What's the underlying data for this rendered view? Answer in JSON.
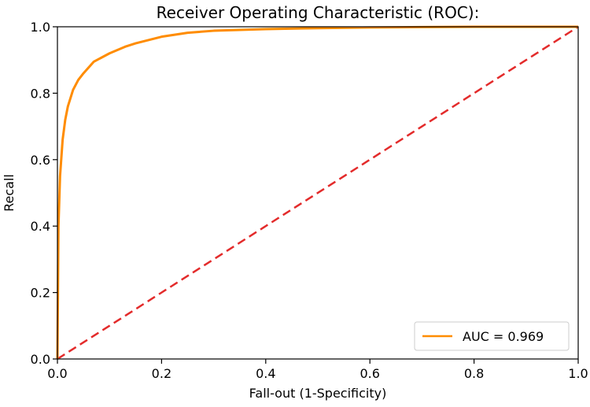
{
  "chart_data": {
    "type": "line",
    "title": "Receiver Operating Characteristic (ROC):",
    "xlabel": "Fall-out (1-Specificity)",
    "ylabel": "Recall",
    "xlim": [
      0,
      1
    ],
    "ylim": [
      0,
      1
    ],
    "xticks": [
      "0.0",
      "0.2",
      "0.4",
      "0.6",
      "0.8",
      "1.0"
    ],
    "yticks": [
      "0.0",
      "0.2",
      "0.4",
      "0.6",
      "0.8",
      "1.0"
    ],
    "grid": false,
    "legend_position": "lower-right",
    "series": [
      {
        "name": "AUC = 0.969",
        "color": "#ff8c00",
        "style": "solid",
        "x": [
          0,
          0.002,
          0.005,
          0.01,
          0.015,
          0.02,
          0.03,
          0.04,
          0.05,
          0.07,
          0.1,
          0.13,
          0.15,
          0.2,
          0.25,
          0.3,
          0.4,
          0.5,
          0.6,
          0.7,
          0.8,
          0.9,
          1.0
        ],
        "y": [
          0,
          0.4,
          0.55,
          0.66,
          0.72,
          0.76,
          0.81,
          0.84,
          0.86,
          0.895,
          0.92,
          0.94,
          0.95,
          0.97,
          0.982,
          0.988,
          0.993,
          0.996,
          0.998,
          0.999,
          1.0,
          1.0,
          1.0
        ]
      },
      {
        "name": "",
        "color": "#e32b2b",
        "style": "dashed",
        "x": [
          0,
          1
        ],
        "y": [
          0,
          1
        ]
      }
    ]
  }
}
